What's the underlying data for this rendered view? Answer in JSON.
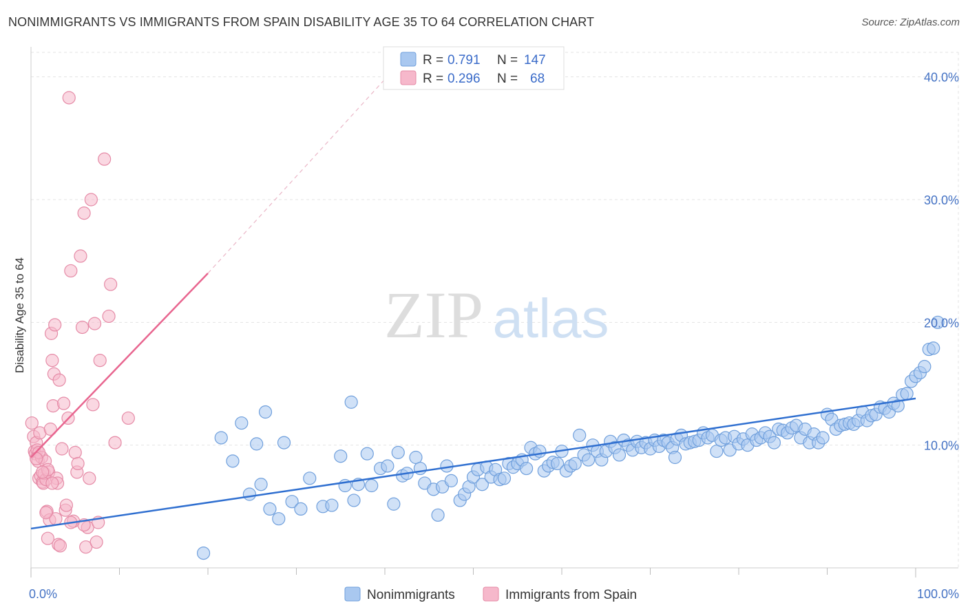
{
  "title": "NONIMMIGRANTS VS IMMIGRANTS FROM SPAIN DISABILITY AGE 35 TO 64 CORRELATION CHART",
  "source": "Source: ZipAtlas.com",
  "watermark": {
    "zip": "ZIP",
    "atlas": "atlas"
  },
  "legend": {
    "rows": [
      {
        "r_label": "R =",
        "r_value": "0.791",
        "n_label": "N =",
        "n_value": "147",
        "color": "#a9c8f0",
        "stroke": "#6f9fdc"
      },
      {
        "r_label": "R =",
        "r_value": "0.296",
        "n_label": "N =",
        "n_value": "68",
        "color": "#f6b8cb",
        "stroke": "#e58aa6"
      }
    ]
  },
  "bottom_legend": [
    {
      "label": "Nonimmigrants",
      "color": "#a9c8f0",
      "stroke": "#6f9fdc"
    },
    {
      "label": "Immigrants from Spain",
      "color": "#f6b8cb",
      "stroke": "#e58aa6"
    }
  ],
  "chart_data": {
    "type": "scatter",
    "ylabel": "Disability Age 35 to 64",
    "xlabel": "",
    "x_ticks": [
      "0.0%",
      "100.0%"
    ],
    "y_ticks": [
      "10.0%",
      "20.0%",
      "30.0%",
      "40.0%"
    ],
    "y_tick_values": [
      10,
      20,
      30,
      40
    ],
    "xlim": [
      0,
      100
    ],
    "ylim": [
      0,
      42
    ],
    "grid": true,
    "legend_position": "top-center",
    "series": [
      {
        "name": "Nonimmigrants",
        "color": "#a9c8f0",
        "stroke": "#6f9fdc",
        "trend": {
          "x": [
            0,
            100
          ],
          "y": [
            3.2,
            13.8
          ],
          "color": "#2f6fd0"
        },
        "points": [
          [
            19.5,
            1.2
          ],
          [
            21.5,
            10.6
          ],
          [
            22.8,
            8.7
          ],
          [
            23.8,
            11.8
          ],
          [
            24.7,
            6.0
          ],
          [
            25.5,
            10.1
          ],
          [
            26.0,
            6.8
          ],
          [
            26.5,
            12.7
          ],
          [
            27.0,
            4.8
          ],
          [
            28.0,
            4.0
          ],
          [
            28.6,
            10.2
          ],
          [
            29.5,
            5.4
          ],
          [
            30.5,
            4.8
          ],
          [
            31.5,
            7.3
          ],
          [
            33.0,
            5.0
          ],
          [
            34.0,
            5.1
          ],
          [
            35.0,
            9.1
          ],
          [
            35.5,
            6.7
          ],
          [
            36.5,
            5.5
          ],
          [
            37.0,
            6.8
          ],
          [
            38.0,
            9.3
          ],
          [
            38.5,
            6.7
          ],
          [
            39.5,
            8.1
          ],
          [
            40.3,
            8.3
          ],
          [
            41.0,
            5.2
          ],
          [
            41.5,
            9.4
          ],
          [
            42.0,
            7.5
          ],
          [
            42.5,
            7.7
          ],
          [
            43.5,
            9.0
          ],
          [
            44.0,
            8.1
          ],
          [
            44.5,
            6.9
          ],
          [
            45.5,
            6.4
          ],
          [
            46.0,
            4.3
          ],
          [
            46.5,
            6.6
          ],
          [
            47.0,
            8.3
          ],
          [
            47.5,
            7.1
          ],
          [
            48.5,
            5.5
          ],
          [
            49.0,
            6.0
          ],
          [
            49.5,
            6.6
          ],
          [
            50.0,
            7.4
          ],
          [
            50.5,
            8.0
          ],
          [
            51.0,
            6.8
          ],
          [
            51.5,
            8.2
          ],
          [
            52.0,
            7.4
          ],
          [
            52.5,
            8.0
          ],
          [
            53.0,
            7.2
          ],
          [
            53.5,
            7.3
          ],
          [
            54.0,
            8.5
          ],
          [
            54.5,
            8.2
          ],
          [
            55.0,
            8.5
          ],
          [
            55.5,
            8.8
          ],
          [
            56.0,
            8.1
          ],
          [
            56.5,
            9.8
          ],
          [
            57.0,
            9.3
          ],
          [
            57.5,
            9.5
          ],
          [
            58.0,
            7.9
          ],
          [
            58.5,
            8.3
          ],
          [
            59.0,
            8.6
          ],
          [
            59.5,
            8.5
          ],
          [
            60.0,
            9.5
          ],
          [
            60.5,
            7.9
          ],
          [
            61.0,
            8.3
          ],
          [
            61.5,
            8.5
          ],
          [
            62.0,
            10.8
          ],
          [
            62.5,
            9.2
          ],
          [
            63.0,
            8.8
          ],
          [
            63.5,
            10.0
          ],
          [
            64.0,
            9.5
          ],
          [
            64.5,
            8.8
          ],
          [
            65.0,
            9.5
          ],
          [
            65.5,
            10.3
          ],
          [
            66.0,
            9.8
          ],
          [
            66.5,
            9.2
          ],
          [
            67.0,
            10.4
          ],
          [
            67.5,
            10.0
          ],
          [
            68.0,
            9.6
          ],
          [
            68.5,
            10.3
          ],
          [
            69.0,
            9.8
          ],
          [
            69.5,
            10.2
          ],
          [
            70.0,
            9.7
          ],
          [
            70.5,
            10.4
          ],
          [
            71.0,
            9.9
          ],
          [
            71.5,
            10.4
          ],
          [
            72.0,
            10.2
          ],
          [
            72.5,
            9.8
          ],
          [
            73.0,
            10.5
          ],
          [
            73.5,
            10.8
          ],
          [
            74.0,
            10.1
          ],
          [
            74.5,
            10.2
          ],
          [
            75.0,
            10.3
          ],
          [
            75.5,
            10.4
          ],
          [
            76.0,
            11.0
          ],
          [
            76.5,
            10.6
          ],
          [
            77.0,
            10.8
          ],
          [
            77.5,
            9.5
          ],
          [
            78.0,
            10.4
          ],
          [
            78.5,
            10.6
          ],
          [
            79.0,
            9.6
          ],
          [
            79.5,
            10.7
          ],
          [
            80.0,
            10.1
          ],
          [
            80.5,
            10.5
          ],
          [
            81.0,
            10.0
          ],
          [
            81.5,
            10.9
          ],
          [
            82.0,
            10.4
          ],
          [
            82.5,
            10.6
          ],
          [
            83.0,
            11.0
          ],
          [
            83.5,
            10.7
          ],
          [
            84.0,
            10.2
          ],
          [
            84.5,
            11.3
          ],
          [
            85.0,
            11.2
          ],
          [
            85.5,
            11.0
          ],
          [
            86.0,
            11.4
          ],
          [
            86.5,
            11.6
          ],
          [
            87.0,
            10.6
          ],
          [
            87.5,
            11.3
          ],
          [
            88.0,
            10.2
          ],
          [
            88.5,
            10.9
          ],
          [
            89.0,
            10.2
          ],
          [
            89.5,
            10.6
          ],
          [
            90.0,
            12.5
          ],
          [
            90.5,
            12.1
          ],
          [
            91.0,
            11.3
          ],
          [
            91.5,
            11.6
          ],
          [
            92.0,
            11.7
          ],
          [
            92.5,
            11.8
          ],
          [
            93.0,
            11.7
          ],
          [
            93.5,
            12.0
          ],
          [
            94.0,
            12.7
          ],
          [
            94.5,
            12.0
          ],
          [
            95.0,
            12.4
          ],
          [
            95.5,
            12.5
          ],
          [
            96.0,
            13.1
          ],
          [
            96.5,
            13.0
          ],
          [
            97.0,
            12.7
          ],
          [
            97.5,
            13.4
          ],
          [
            98.0,
            13.2
          ],
          [
            98.5,
            14.1
          ],
          [
            99.0,
            14.2
          ],
          [
            99.5,
            15.2
          ],
          [
            100.0,
            15.6
          ],
          [
            100.5,
            15.9
          ],
          [
            101.0,
            16.4
          ],
          [
            101.5,
            17.8
          ],
          [
            102.0,
            17.9
          ],
          [
            102.5,
            20.0
          ],
          [
            72.8,
            9.0
          ],
          [
            36.2,
            13.5
          ]
        ]
      },
      {
        "name": "Immigrants from Spain",
        "color": "#f6b8cb",
        "stroke": "#e58aa6",
        "trend": {
          "x": [
            0,
            20
          ],
          "y": [
            9.0,
            24.0
          ],
          "color": "#e8658f",
          "dash_x": [
            20,
            40.5
          ],
          "dash_y": [
            24.0,
            40.2
          ]
        },
        "points": [
          [
            0.1,
            11.8
          ],
          [
            0.3,
            10.7
          ],
          [
            0.4,
            9.5
          ],
          [
            0.5,
            9.3
          ],
          [
            0.6,
            10.2
          ],
          [
            0.7,
            9.6
          ],
          [
            0.8,
            8.7
          ],
          [
            0.9,
            7.3
          ],
          [
            1.0,
            11.0
          ],
          [
            1.1,
            7.5
          ],
          [
            1.2,
            9.0
          ],
          [
            1.3,
            7.0
          ],
          [
            1.4,
            6.9
          ],
          [
            1.5,
            7.7
          ],
          [
            1.6,
            8.7
          ],
          [
            1.7,
            7.2
          ],
          [
            1.8,
            4.6
          ],
          [
            1.9,
            2.4
          ],
          [
            2.0,
            7.8
          ],
          [
            2.1,
            3.9
          ],
          [
            2.2,
            11.3
          ],
          [
            2.3,
            19.1
          ],
          [
            2.4,
            16.9
          ],
          [
            2.5,
            13.2
          ],
          [
            2.6,
            15.8
          ],
          [
            2.7,
            19.8
          ],
          [
            2.8,
            4.0
          ],
          [
            2.9,
            7.3
          ],
          [
            3.0,
            6.9
          ],
          [
            3.1,
            1.9
          ],
          [
            3.2,
            15.3
          ],
          [
            3.5,
            9.7
          ],
          [
            3.7,
            13.4
          ],
          [
            3.9,
            4.7
          ],
          [
            4.0,
            5.1
          ],
          [
            4.2,
            12.2
          ],
          [
            4.3,
            38.3
          ],
          [
            4.5,
            24.2
          ],
          [
            4.8,
            3.8
          ],
          [
            5.0,
            9.4
          ],
          [
            5.2,
            7.8
          ],
          [
            5.3,
            8.5
          ],
          [
            5.6,
            25.4
          ],
          [
            5.8,
            19.6
          ],
          [
            6.0,
            28.9
          ],
          [
            6.2,
            1.7
          ],
          [
            6.4,
            3.3
          ],
          [
            6.6,
            7.3
          ],
          [
            6.8,
            30.0
          ],
          [
            7.0,
            13.3
          ],
          [
            7.2,
            19.9
          ],
          [
            7.4,
            2.1
          ],
          [
            7.6,
            3.7
          ],
          [
            7.8,
            16.9
          ],
          [
            8.3,
            33.3
          ],
          [
            8.8,
            20.5
          ],
          [
            9.0,
            23.1
          ],
          [
            9.5,
            10.2
          ],
          [
            11.0,
            12.2
          ],
          [
            3.3,
            1.8
          ],
          [
            2.4,
            6.9
          ],
          [
            1.9,
            8.0
          ],
          [
            0.9,
            9.4
          ],
          [
            1.3,
            7.8
          ],
          [
            0.6,
            8.9
          ],
          [
            6.0,
            3.5
          ],
          [
            4.5,
            3.7
          ],
          [
            1.7,
            4.5
          ]
        ]
      }
    ]
  }
}
